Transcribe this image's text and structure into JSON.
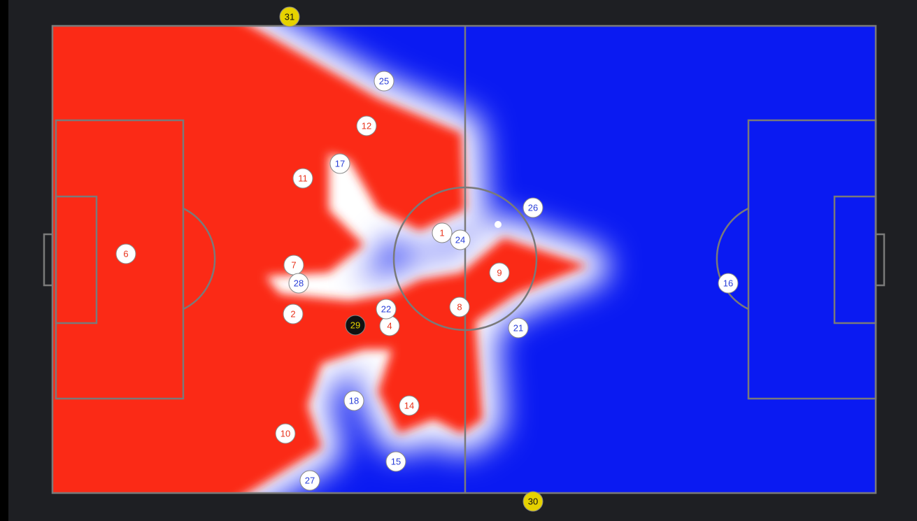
{
  "players": [
    {
      "number": "6",
      "color": "#e8341c",
      "fill": "#ffffff"
    },
    {
      "number": "12",
      "color": "#e8341c",
      "fill": "#ffffff"
    },
    {
      "number": "11",
      "color": "#e8341c",
      "fill": "#ffffff"
    },
    {
      "number": "7",
      "color": "#e8341c",
      "fill": "#ffffff"
    },
    {
      "number": "2",
      "color": "#e8341c",
      "fill": "#ffffff"
    },
    {
      "number": "4",
      "color": "#e8341c",
      "fill": "#ffffff"
    },
    {
      "number": "1",
      "color": "#e8341c",
      "fill": "#ffffff"
    },
    {
      "number": "9",
      "color": "#e8341c",
      "fill": "#ffffff"
    },
    {
      "number": "8",
      "color": "#e8341c",
      "fill": "#ffffff"
    },
    {
      "number": "14",
      "color": "#e8341c",
      "fill": "#ffffff"
    },
    {
      "number": "10",
      "color": "#e8341c",
      "fill": "#ffffff"
    },
    {
      "number": "25",
      "color": "#2a3fd8",
      "fill": "#ffffff"
    },
    {
      "number": "17",
      "color": "#2a3fd8",
      "fill": "#ffffff"
    },
    {
      "number": "26",
      "color": "#2a3fd8",
      "fill": "#ffffff"
    },
    {
      "number": "24",
      "color": "#2a3fd8",
      "fill": "#ffffff"
    },
    {
      "number": "28",
      "color": "#2a3fd8",
      "fill": "#ffffff"
    },
    {
      "number": "22",
      "color": "#2a3fd8",
      "fill": "#ffffff"
    },
    {
      "number": "21",
      "color": "#2a3fd8",
      "fill": "#ffffff"
    },
    {
      "number": "18",
      "color": "#2a3fd8",
      "fill": "#ffffff"
    },
    {
      "number": "15",
      "color": "#2a3fd8",
      "fill": "#ffffff"
    },
    {
      "number": "27",
      "color": "#2a3fd8",
      "fill": "#ffffff"
    },
    {
      "number": "16",
      "color": "#2a3fd8",
      "fill": "#ffffff"
    },
    {
      "number": "31",
      "color": "#111111",
      "fill": "#e6d200"
    },
    {
      "number": "29",
      "color": "#e6d200",
      "fill": "#111111"
    },
    {
      "number": "30",
      "color": "#111111",
      "fill": "#e6d200"
    }
  ]
}
